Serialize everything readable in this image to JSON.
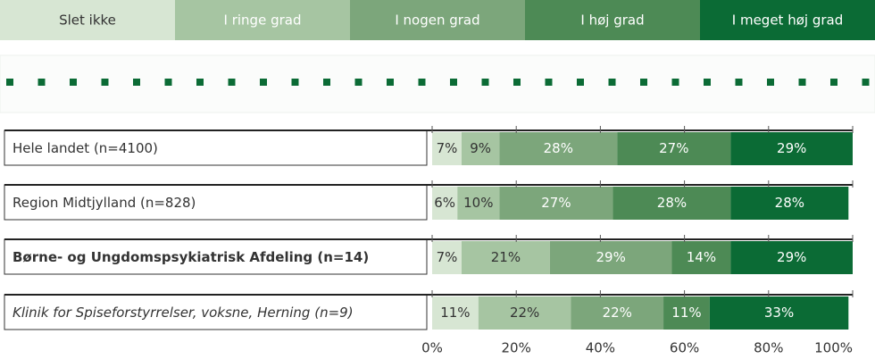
{
  "chart_data": {
    "type": "stacked-bar-horizontal",
    "categories": [
      "Hele landet (n=4100)",
      "Region Midtjylland (n=828)",
      "Børne- og Ungdomspsykiatrisk Afdeling (n=14)",
      "Klinik for Spiseforstyrrelser, voksne, Herning (n=9)"
    ],
    "series": [
      {
        "name": "Slet ikke",
        "color": "#d7e6d3",
        "values": [
          7,
          6,
          7,
          11
        ],
        "value_labels": [
          "7%",
          "6%",
          "7%",
          "11%"
        ]
      },
      {
        "name": "I ringe grad",
        "color": "#a6c5a2",
        "values": [
          9,
          10,
          21,
          22
        ],
        "value_labels": [
          "9%",
          "10%",
          "21%",
          "22%"
        ]
      },
      {
        "name": "I nogen grad",
        "color": "#7ca67b",
        "values": [
          28,
          27,
          29,
          22
        ],
        "value_labels": [
          "28%",
          "27%",
          "29%",
          "22%"
        ]
      },
      {
        "name": "I høj grad",
        "color": "#4d8a55",
        "values": [
          27,
          28,
          14,
          11
        ],
        "value_labels": [
          "27%",
          "28%",
          "14%",
          "11%"
        ]
      },
      {
        "name": "I meget høj grad",
        "color": "#0b6b35",
        "values": [
          29,
          28,
          29,
          33
        ],
        "value_labels": [
          "29%",
          "28%",
          "29%",
          "33%"
        ]
      }
    ],
    "xlim": [
      0,
      100
    ],
    "xticks": [
      {
        "value": 0,
        "label": "0%"
      },
      {
        "value": 20,
        "label": "20%"
      },
      {
        "value": 40,
        "label": "40%"
      },
      {
        "value": 60,
        "label": "60%"
      },
      {
        "value": 80,
        "label": "80%"
      },
      {
        "value": 100,
        "label": "100%"
      }
    ]
  }
}
